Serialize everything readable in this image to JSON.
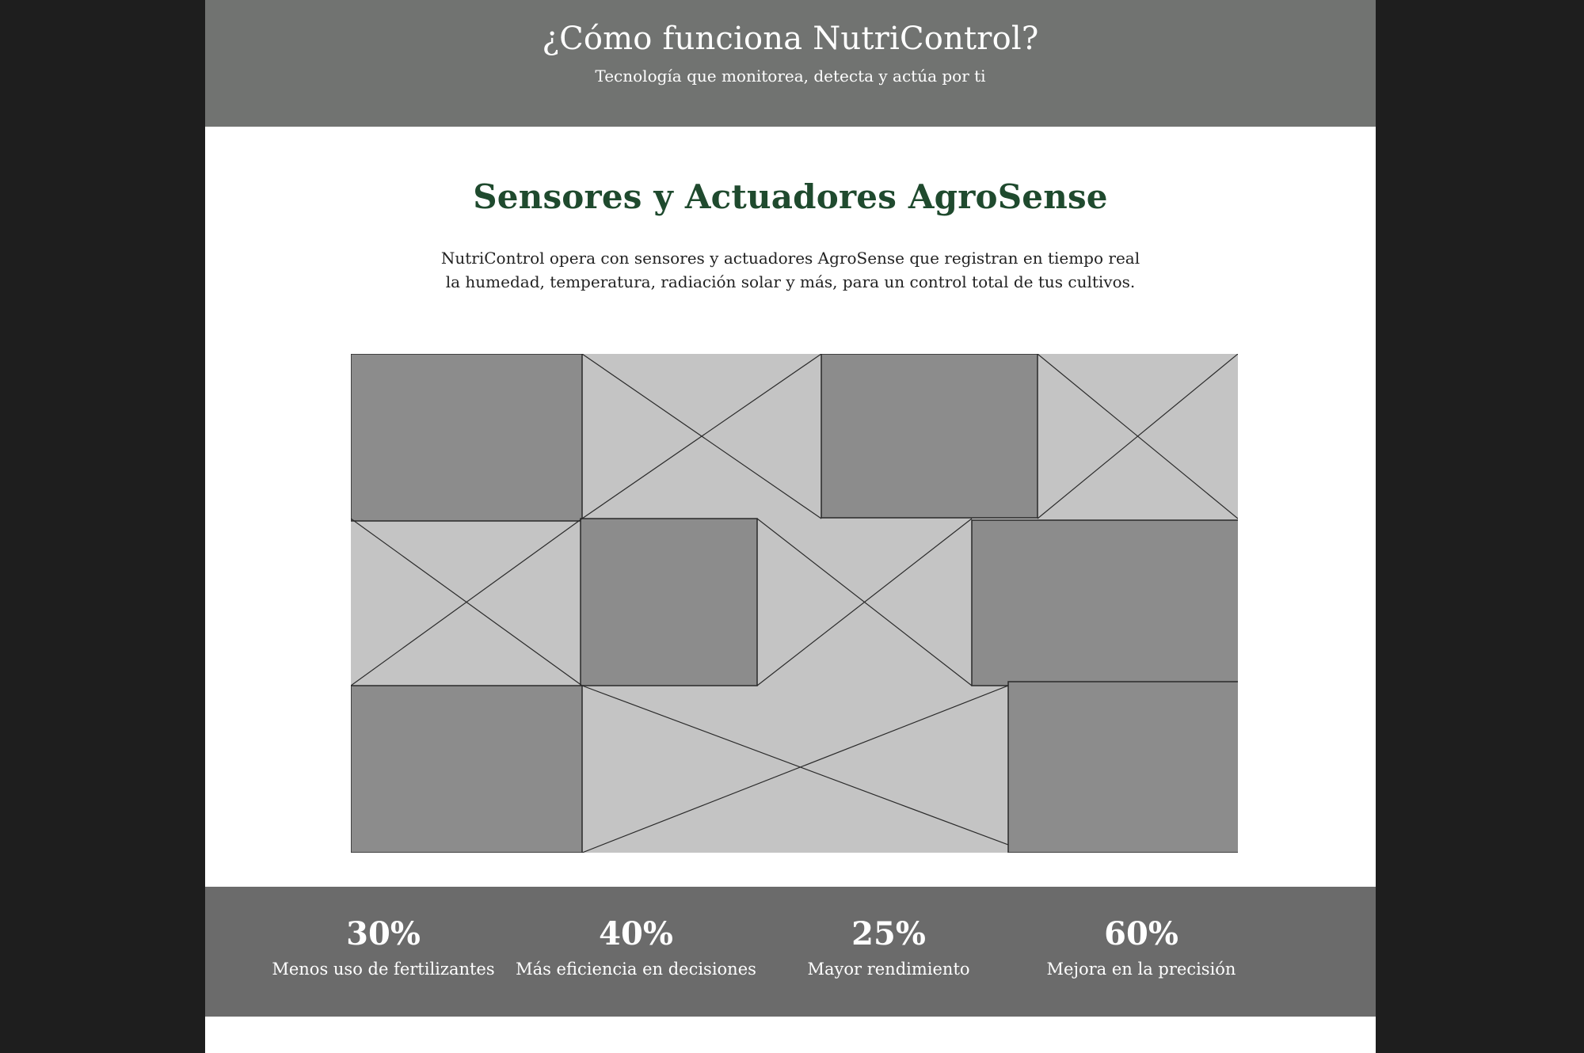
{
  "hero": {
    "title": "¿Cómo funciona NutriControl?",
    "subtitle": "Tecnología que monitorea, detecta y actúa por ti"
  },
  "section": {
    "title": "Sensores y Actuadores AgroSense",
    "text": "NutriControl opera con sensores y actuadores AgroSense que registran en tiempo real la humedad, temperatura, radiación solar y más, para un control total de tus cultivos."
  },
  "gallery": {
    "items": [
      {
        "type": "image"
      },
      {
        "type": "placeholder"
      },
      {
        "type": "image"
      },
      {
        "type": "placeholder"
      },
      {
        "type": "placeholder"
      },
      {
        "type": "image"
      },
      {
        "type": "placeholder"
      },
      {
        "type": "image"
      },
      {
        "type": "image"
      },
      {
        "type": "placeholder"
      },
      {
        "type": "image"
      }
    ]
  },
  "stats": [
    {
      "value": "30%",
      "label": "Menos uso de fertilizantes"
    },
    {
      "value": "40%",
      "label": "Más eficiencia en decisiones"
    },
    {
      "value": "25%",
      "label": "Mayor rendimiento"
    },
    {
      "value": "60%",
      "label": "Mejora en la precisión"
    }
  ],
  "colors": {
    "hero_bg": "#717371",
    "title_green": "#1f4a2e",
    "stats_bg": "#6b6b6b",
    "image_fill": "#8c8c8c",
    "placeholder_fill": "#c4c4c4"
  }
}
